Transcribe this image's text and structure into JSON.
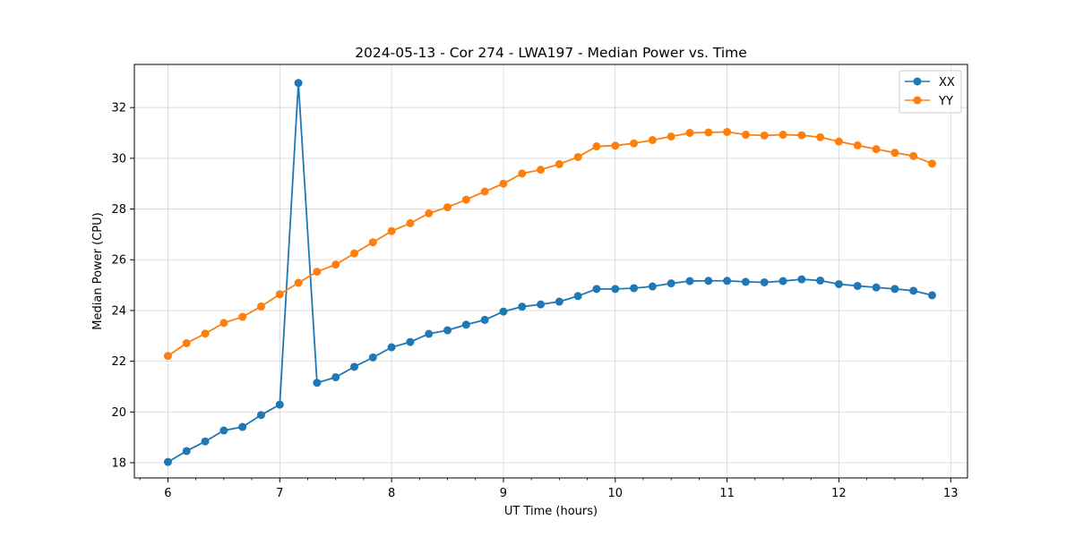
{
  "chart_data": {
    "type": "line",
    "title": "2024-05-13 - Cor 274 - LWA197 - Median Power vs. Time",
    "xlabel": "UT Time (hours)",
    "ylabel": "Median Power (CPU)",
    "xlim": [
      5.7,
      13.15
    ],
    "ylim": [
      17.4,
      33.7
    ],
    "xticks": [
      6,
      7,
      8,
      9,
      10,
      11,
      12,
      13
    ],
    "xtick_labels": [
      "6",
      "7",
      "8",
      "9",
      "10",
      "11",
      "12",
      "13"
    ],
    "yticks": [
      18,
      20,
      22,
      24,
      26,
      28,
      30,
      32
    ],
    "ytick_labels": [
      "18",
      "20",
      "22",
      "24",
      "26",
      "28",
      "30",
      "32"
    ],
    "grid": true,
    "legend_position": "top-right",
    "x": [
      6.0,
      6.1667,
      6.3333,
      6.5,
      6.6667,
      6.8333,
      7.0,
      7.1667,
      7.3333,
      7.5,
      7.6667,
      7.8333,
      8.0,
      8.1667,
      8.3333,
      8.5,
      8.6667,
      8.8333,
      9.0,
      9.1667,
      9.3333,
      9.5,
      9.6667,
      9.8333,
      10.0,
      10.1667,
      10.3333,
      10.5,
      10.6667,
      10.8333,
      11.0,
      11.1667,
      11.3333,
      11.5,
      11.6667,
      11.8333,
      12.0,
      12.1667,
      12.3333,
      12.5,
      12.6667,
      12.8333
    ],
    "series": [
      {
        "name": "XX",
        "color": "#1f77b4",
        "values": [
          18.03,
          18.46,
          18.84,
          19.27,
          19.41,
          19.88,
          20.29,
          32.97,
          21.15,
          21.37,
          21.78,
          22.15,
          22.55,
          22.76,
          23.08,
          23.22,
          23.44,
          23.63,
          23.96,
          24.15,
          24.24,
          24.35,
          24.57,
          24.85,
          24.85,
          24.88,
          24.95,
          25.07,
          25.16,
          25.17,
          25.17,
          25.13,
          25.11,
          25.16,
          25.23,
          25.18,
          25.04,
          24.97,
          24.91,
          24.85,
          24.78,
          24.6
        ]
      },
      {
        "name": "YY",
        "color": "#ff7f0e",
        "values": [
          22.21,
          22.71,
          23.09,
          23.51,
          23.75,
          24.16,
          24.64,
          25.09,
          25.53,
          25.81,
          26.25,
          26.69,
          27.13,
          27.44,
          27.83,
          28.07,
          28.37,
          28.69,
          29.0,
          29.4,
          29.55,
          29.77,
          30.05,
          30.47,
          30.5,
          30.59,
          30.72,
          30.86,
          31.0,
          31.02,
          31.04,
          30.93,
          30.9,
          30.93,
          30.91,
          30.83,
          30.66,
          30.51,
          30.36,
          30.22,
          30.09,
          29.79
        ]
      }
    ]
  }
}
